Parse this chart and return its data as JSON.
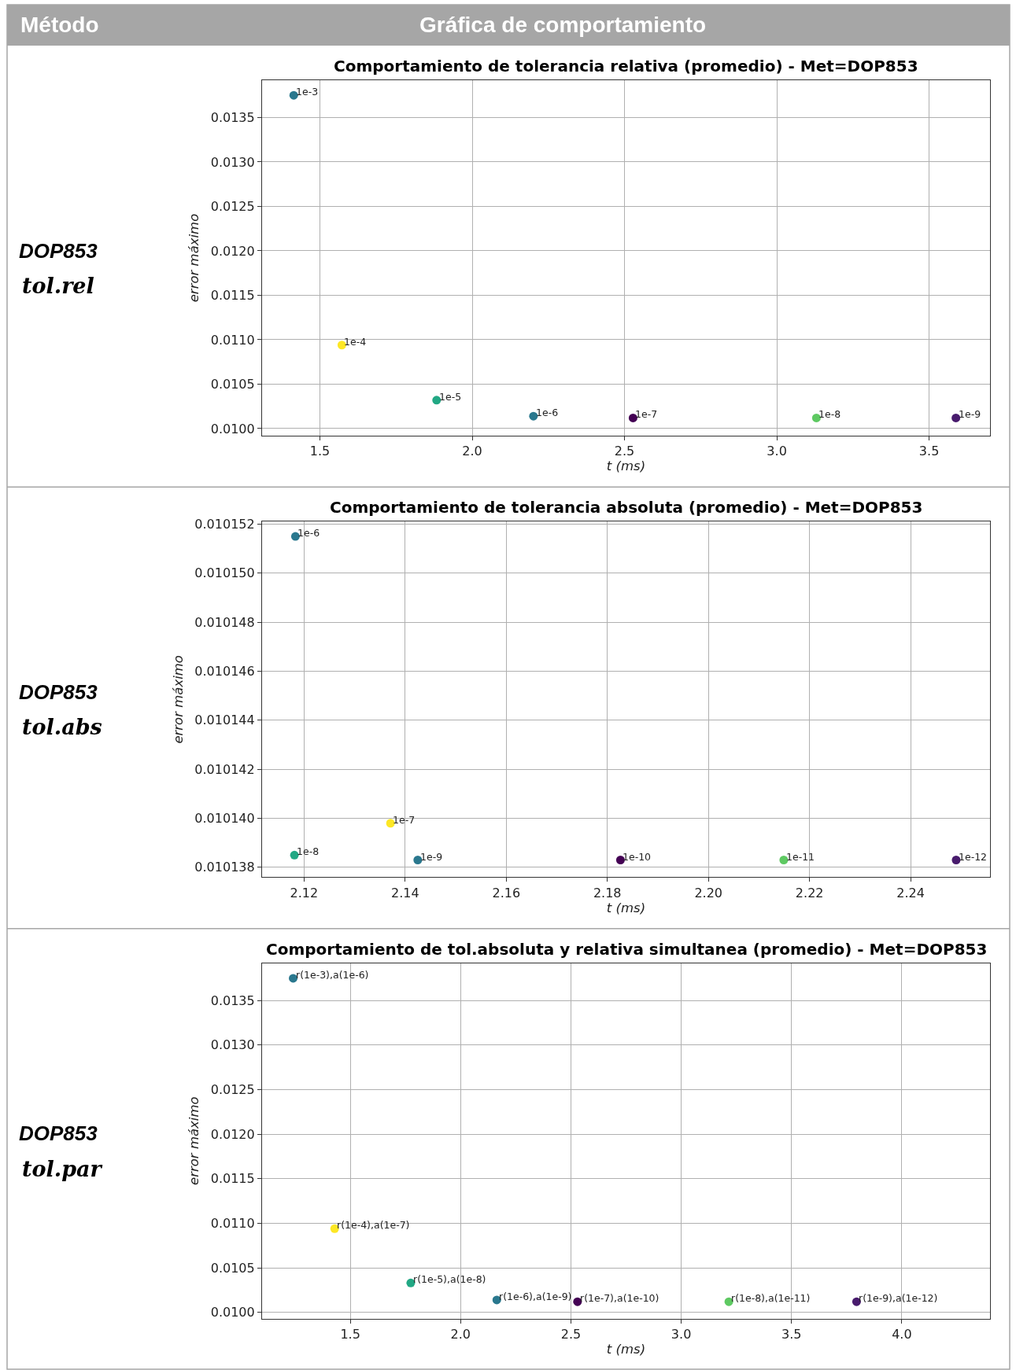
{
  "chart_data": [
    {
      "type": "scatter",
      "title": "Comportamiento de tolerancia relativa (promedio) - Met=DOP853",
      "xlabel": "t (ms)",
      "ylabel": "error máximo",
      "annotations": [
        "Método",
        "Gráfica de comportamiento",
        "DOP853",
        "tol.rel",
        {
          "text": "1e-3",
          "x": 1.414,
          "y": 0.01375
        },
        {
          "text": "1e-4",
          "x": 1.572,
          "y": 0.01094
        },
        {
          "text": "1e-5",
          "x": 1.883,
          "y": 0.01032
        },
        {
          "text": "1e-6",
          "x": 2.201,
          "y": 0.01014
        },
        {
          "text": "1e-7",
          "x": 2.528,
          "y": 0.01012
        },
        {
          "text": "1e-8",
          "x": 3.13,
          "y": 0.01012
        },
        {
          "text": "1e-9",
          "x": 3.588,
          "y": 0.01012
        }
      ],
      "x": [
        1.414,
        1.572,
        1.883,
        2.201,
        2.528,
        3.13,
        3.588
      ],
      "values": [
        0.01375,
        0.01094,
        0.01032,
        0.01014,
        0.01012,
        0.01012,
        0.01012
      ],
      "colors": [
        "#2a788e",
        "#fde725",
        "#22a884",
        "#2a788e",
        "#440154",
        "#5ec962",
        "#481b6d"
      ],
      "xlim": [
        1.31,
        3.7
      ],
      "ylim": [
        0.00992,
        0.01392
      ],
      "xticks": [
        1.5,
        {
          "value": 2.0,
          "label": "2.0"
        },
        2.5,
        {
          "value": 3.0,
          "label": "3.0"
        },
        3.5
      ],
      "yticks": [
        {
          "value": 0.01,
          "label": "0.0100"
        },
        0.0105,
        {
          "value": 0.011,
          "label": "0.0110"
        },
        0.0115,
        {
          "value": 0.012,
          "label": "0.0120"
        },
        0.0125,
        {
          "value": 0.013,
          "label": "0.0130"
        },
        0.0135
      ],
      "grid": true,
      "marker": "circle"
    },
    {
      "type": "scatter",
      "title": "Comportamiento de tolerancia absoluta (promedio) - Met=DOP853",
      "xlabel": "t (ms)",
      "ylabel": "error máximo",
      "annotations": [
        "DOP853",
        "tol.abs",
        {
          "text": "1e-6",
          "x": 2.1183,
          "y": 0.0101515
        },
        {
          "text": "1e-7",
          "x": 2.1371,
          "y": 0.0101398
        },
        {
          "text": "1e-8",
          "x": 2.1181,
          "y": 0.0101385
        },
        {
          "text": "1e-9",
          "x": 2.1425,
          "y": 0.0101383
        },
        {
          "text": "1e-10",
          "x": 2.1826,
          "y": 0.0101383
        },
        {
          "text": "1e-11",
          "x": 2.2149,
          "y": 0.0101383
        },
        {
          "text": "1e-12",
          "x": 2.249,
          "y": 0.0101383
        }
      ],
      "x": [
        2.1183,
        2.1371,
        2.1181,
        2.1425,
        2.1826,
        2.2149,
        2.249
      ],
      "values": [
        0.0101515,
        0.0101398,
        0.0101385,
        0.0101383,
        0.0101383,
        0.0101383,
        0.0101383
      ],
      "colors": [
        "#2a788e",
        "#fde725",
        "#22a884",
        "#2a788e",
        "#440154",
        "#5ec962",
        "#481b6d"
      ],
      "xlim": [
        2.1117,
        2.2557
      ],
      "ylim": [
        0.0101376,
        0.0101521
      ],
      "xticks": [
        2.12,
        2.14,
        2.16,
        2.18,
        {
          "value": 2.2,
          "label": "2.20"
        },
        2.22,
        2.24
      ],
      "yticks": [
        0.010138,
        {
          "value": 0.01014,
          "label": "0.010140"
        },
        0.010142,
        0.010144,
        0.010146,
        0.010148,
        {
          "value": 0.01015,
          "label": "0.010150"
        },
        0.010152
      ],
      "grid": true,
      "marker": "circle"
    },
    {
      "type": "scatter",
      "title": "Comportamiento de tol.absoluta y relativa simultanea (promedio) - Met=DOP853",
      "xlabel": "t (ms)",
      "ylabel": "error máximo",
      "annotations": [
        "DOP853",
        "tol.par",
        {
          "text": "r(1e-3),a(1e-6)",
          "x": 1.241,
          "y": 0.01375
        },
        {
          "text": "r(1e-4),a(1e-7)",
          "x": 1.429,
          "y": 0.01094
        },
        {
          "text": "r(1e-5),a(1e-8)",
          "x": 1.774,
          "y": 0.01033
        },
        {
          "text": "r(1e-6),a(1e-9)",
          "x": 2.164,
          "y": 0.01014
        },
        {
          "text": "r(1e-7),a(1e-10)",
          "x": 2.53,
          "y": 0.01012
        },
        {
          "text": "r(1e-8),a(1e-11)",
          "x": 3.216,
          "y": 0.01012
        },
        {
          "text": "r(1e-9),a(1e-12)",
          "x": 3.795,
          "y": 0.01012
        }
      ],
      "x": [
        1.241,
        1.429,
        1.774,
        2.164,
        2.53,
        3.216,
        3.795
      ],
      "values": [
        0.01375,
        0.01094,
        0.01033,
        0.01014,
        0.01012,
        0.01012,
        0.01012
      ],
      "colors": [
        "#2a788e",
        "#fde725",
        "#22a884",
        "#2a788e",
        "#440154",
        "#5ec962",
        "#481b6d"
      ],
      "xlim": [
        1.1,
        4.4
      ],
      "ylim": [
        0.00993,
        0.01392
      ],
      "xticks": [
        1.5,
        {
          "value": 2.0,
          "label": "2.0"
        },
        2.5,
        {
          "value": 3.0,
          "label": "3.0"
        },
        3.5,
        {
          "value": 4.0,
          "label": "4.0"
        }
      ],
      "yticks": [
        {
          "value": 0.01,
          "label": "0.0100"
        },
        0.0105,
        {
          "value": 0.011,
          "label": "0.0110"
        },
        0.0115,
        {
          "value": 0.012,
          "label": "0.0120"
        },
        0.0125,
        {
          "value": 0.013,
          "label": "0.0130"
        },
        0.0135
      ],
      "grid": true,
      "marker": "circle"
    }
  ]
}
